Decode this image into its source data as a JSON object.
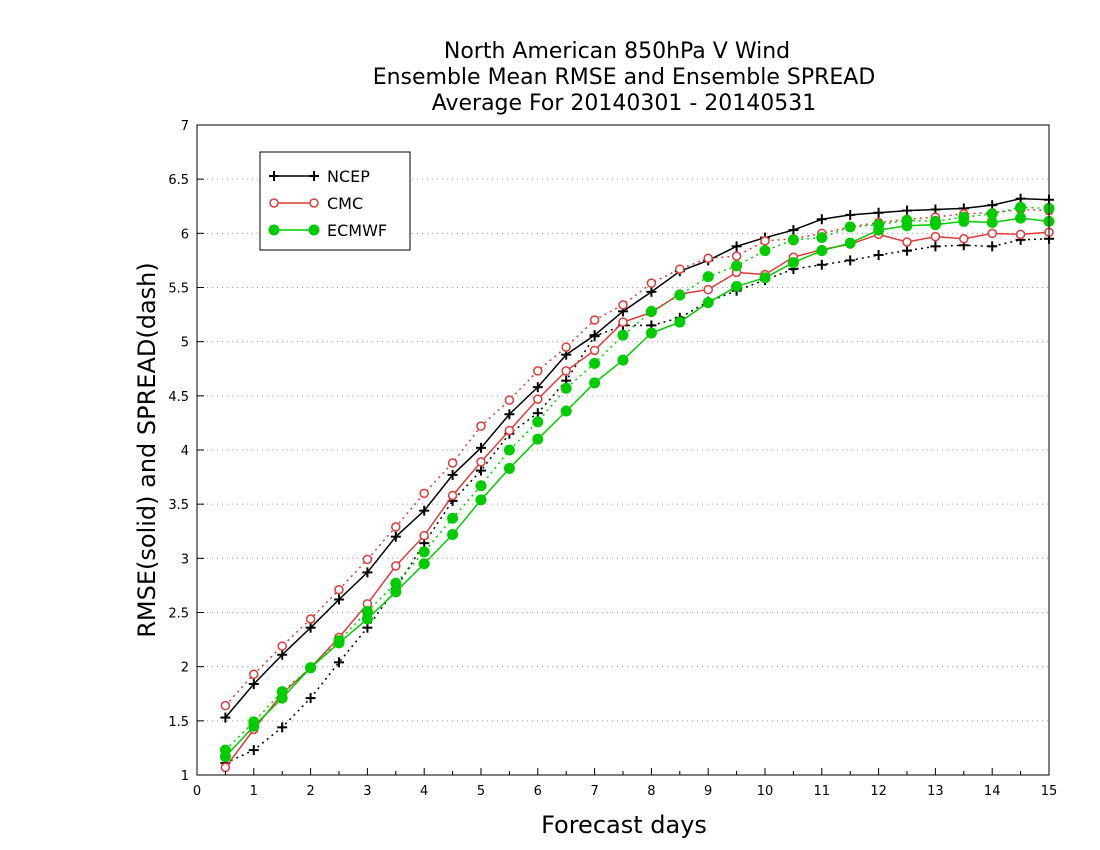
{
  "chart_data": {
    "type": "line",
    "title_lines": [
      "North American 850hPa V Wind",
      "Ensemble Mean RMSE and Ensemble SPREAD",
      "Average For 20140301 - 20140531"
    ],
    "xlabel": "Forecast days",
    "ylabel": "RMSE(solid) and SPREAD(dash)",
    "xlim": [
      0,
      15
    ],
    "ylim": [
      1,
      7
    ],
    "xticks": [
      "0",
      "1",
      "2",
      "3",
      "4",
      "5",
      "6",
      "7",
      "8",
      "9",
      "10",
      "11",
      "12",
      "13",
      "14",
      "15"
    ],
    "yticks": [
      "1",
      "1.5",
      "2",
      "2.5",
      "3",
      "3.5",
      "4",
      "4.5",
      "5",
      "5.5",
      "6",
      "6.5",
      "7"
    ],
    "grid": "horizontal dotted",
    "legend_position": "top-left",
    "x": [
      0.5,
      1,
      1.5,
      2,
      2.5,
      3,
      3.5,
      4,
      4.5,
      5,
      5.5,
      6,
      6.5,
      7,
      7.5,
      8,
      8.5,
      9,
      9.5,
      10,
      10.5,
      11,
      11.5,
      12,
      12.5,
      13,
      13.5,
      14,
      14.5,
      15
    ],
    "series": [
      {
        "name": "NCEP",
        "color": "#000000",
        "marker": "plus",
        "rmse": [
          1.53,
          1.84,
          2.11,
          2.36,
          2.62,
          2.87,
          3.2,
          3.44,
          3.77,
          4.02,
          4.33,
          4.58,
          4.88,
          5.06,
          5.28,
          5.46,
          5.65,
          5.75,
          5.88,
          5.96,
          6.03,
          6.13,
          6.17,
          6.19,
          6.21,
          6.22,
          6.23,
          6.26,
          6.32,
          6.31
        ],
        "spread": [
          1.11,
          1.23,
          1.44,
          1.71,
          2.04,
          2.36,
          2.72,
          3.14,
          3.53,
          3.81,
          4.15,
          4.34,
          4.64,
          5.05,
          5.15,
          5.15,
          5.22,
          5.37,
          5.47,
          5.57,
          5.67,
          5.71,
          5.75,
          5.8,
          5.84,
          5.88,
          5.89,
          5.88,
          5.94,
          5.95
        ]
      },
      {
        "name": "CMC",
        "color": "#e03a3a",
        "marker": "open-circle",
        "rmse": [
          1.07,
          1.42,
          1.75,
          1.99,
          2.27,
          2.58,
          2.93,
          3.21,
          3.58,
          3.89,
          4.18,
          4.47,
          4.73,
          4.92,
          5.18,
          5.27,
          5.44,
          5.48,
          5.64,
          5.62,
          5.78,
          5.85,
          5.9,
          5.99,
          5.92,
          5.97,
          5.95,
          6.0,
          5.99,
          6.01
        ],
        "spread": [
          1.64,
          1.93,
          2.19,
          2.44,
          2.71,
          2.99,
          3.29,
          3.6,
          3.88,
          4.22,
          4.46,
          4.73,
          4.95,
          5.2,
          5.34,
          5.54,
          5.67,
          5.77,
          5.79,
          5.93,
          5.95,
          6.0,
          6.06,
          6.1,
          6.13,
          6.15,
          6.18,
          6.19,
          6.22,
          6.21
        ]
      },
      {
        "name": "ECMWF",
        "color": "#00cc00",
        "marker": "filled-circle",
        "rmse": [
          1.17,
          1.45,
          1.71,
          1.99,
          2.22,
          2.44,
          2.69,
          2.95,
          3.22,
          3.54,
          3.83,
          4.1,
          4.36,
          4.62,
          4.83,
          5.08,
          5.18,
          5.36,
          5.51,
          5.59,
          5.73,
          5.84,
          5.91,
          6.03,
          6.07,
          6.08,
          6.11,
          6.1,
          6.14,
          6.11
        ],
        "spread": [
          1.23,
          1.49,
          1.77,
          1.99,
          2.24,
          2.51,
          2.77,
          3.06,
          3.37,
          3.67,
          4.0,
          4.26,
          4.57,
          4.8,
          5.06,
          5.28,
          5.43,
          5.6,
          5.7,
          5.84,
          5.94,
          5.96,
          6.06,
          6.08,
          6.12,
          6.11,
          6.15,
          6.18,
          6.24,
          6.23
        ]
      }
    ]
  }
}
